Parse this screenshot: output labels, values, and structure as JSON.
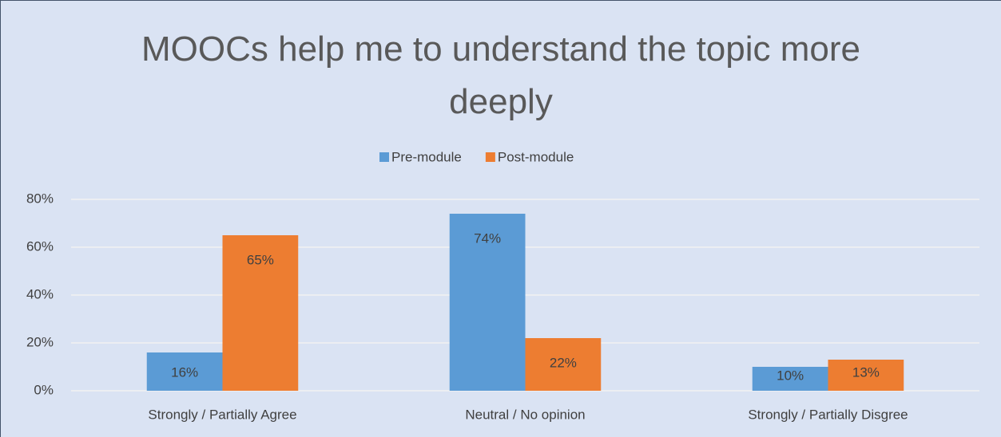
{
  "chart_data": {
    "type": "bar",
    "title": "MOOCs help me to understand the topic more deeply",
    "categories": [
      "Strongly / Partially Agree",
      "Neutral / No opinion",
      "Strongly / Partially Disgree"
    ],
    "series": [
      {
        "name": "Pre-module",
        "color": "#5b9bd5",
        "values": [
          16,
          74,
          10
        ],
        "value_labels": [
          "16%",
          "74%",
          "10%"
        ]
      },
      {
        "name": "Post-module",
        "color": "#ed7d31",
        "values": [
          65,
          22,
          13
        ],
        "value_labels": [
          "65%",
          "22%",
          "13%"
        ]
      }
    ],
    "ylim": [
      0,
      80
    ],
    "yticks": [
      {
        "value": 0,
        "label": "0%"
      },
      {
        "value": 20,
        "label": "20%"
      },
      {
        "value": 40,
        "label": "40%"
      },
      {
        "value": 60,
        "label": "60%"
      },
      {
        "value": 80,
        "label": "80%"
      }
    ],
    "grid": true,
    "legend": "top"
  }
}
